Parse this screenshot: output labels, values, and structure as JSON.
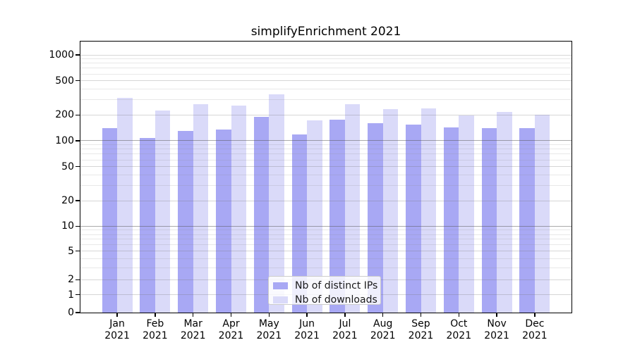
{
  "title": "simplifyEnrichment 2021",
  "chart_data": {
    "type": "bar",
    "title": "simplifyEnrichment 2021",
    "categories": [
      "Jan",
      "Feb",
      "Mar",
      "Apr",
      "May",
      "Jun",
      "Jul",
      "Aug",
      "Sep",
      "Oct",
      "Nov",
      "Dec"
    ],
    "year_label": "2021",
    "series": [
      {
        "name": "Nb of distinct IPs",
        "color": "#a8a8f4",
        "values": [
          140,
          107,
          130,
          136,
          190,
          119,
          175,
          159,
          155,
          143,
          140,
          140
        ]
      },
      {
        "name": "Nb of downloads",
        "color": "#dadaf9",
        "values": [
          318,
          224,
          267,
          258,
          350,
          174,
          266,
          233,
          239,
          197,
          218,
          202
        ]
      }
    ],
    "y_ticks": [
      0,
      1,
      2,
      5,
      10,
      20,
      50,
      100,
      200,
      500,
      1000
    ],
    "y_axis_scale": "asinh-log",
    "ylim": [
      0,
      2000
    ],
    "grid": "on",
    "legend_position": "bottom-center"
  }
}
